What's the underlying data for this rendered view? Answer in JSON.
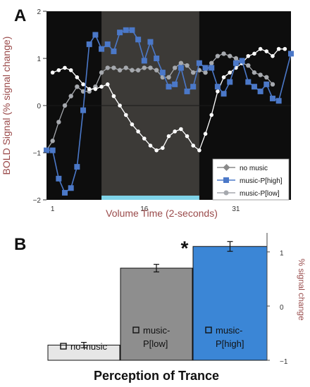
{
  "figure": {
    "panel_a_letter": "A",
    "panel_b_letter": "B",
    "significance_marker": "*"
  },
  "chart_data": [
    {
      "panel": "A",
      "type": "line",
      "title": "",
      "xlabel": "Volume Time (2-seconds)",
      "ylabel": "BOLD Signal (% signal change)",
      "xlim": [
        0,
        40
      ],
      "ylim": [
        -2,
        2
      ],
      "xticks": [
        1,
        16,
        31
      ],
      "yticks": [
        -2,
        -1,
        0,
        1,
        2
      ],
      "highlight_region": [
        9,
        25
      ],
      "legend_position": "lower-right",
      "colors": {
        "background": "#0d0d0d",
        "highlight": "#3c3a37",
        "music_high": "#4b78c8",
        "music_low": "#a6a9ae",
        "no_music": "#ffffff",
        "marker_bar": "#7fd3e8",
        "ylabel": "#9a4a4a"
      },
      "series": [
        {
          "name": "no music",
          "color": "#ffffff",
          "legend_color": "#8a8a8a",
          "marker": "diamond",
          "x": [
            1,
            2,
            3,
            4,
            5,
            6,
            7,
            8,
            9,
            10,
            11,
            12,
            13,
            14,
            15,
            16,
            17,
            18,
            19,
            20,
            21,
            22,
            23,
            24,
            25,
            26,
            27,
            28,
            29,
            30,
            31,
            32,
            33,
            34,
            35,
            36,
            37,
            38,
            39
          ],
          "values": [
            0.7,
            0.75,
            0.8,
            0.75,
            0.6,
            0.45,
            0.35,
            0.35,
            0.4,
            0.45,
            0.2,
            0.0,
            -0.2,
            -0.4,
            -0.55,
            -0.7,
            -0.85,
            -0.95,
            -0.9,
            -0.65,
            -0.55,
            -0.5,
            -0.65,
            -0.85,
            -0.95,
            -0.6,
            -0.2,
            0.3,
            0.6,
            0.7,
            0.8,
            0.9,
            1.05,
            1.1,
            1.2,
            1.15,
            1.05,
            1.2,
            1.2
          ]
        },
        {
          "name": "music-P[high]",
          "color": "#4b78c8",
          "marker": "square",
          "x": [
            0,
            1,
            2,
            3,
            4,
            5,
            6,
            7,
            8,
            9,
            10,
            11,
            12,
            13,
            14,
            15,
            16,
            17,
            18,
            19,
            20,
            21,
            22,
            23,
            24,
            25,
            26,
            27,
            28,
            29,
            30,
            31,
            32,
            33,
            34,
            35,
            36,
            37,
            38,
            40
          ],
          "values": [
            -0.95,
            -0.95,
            -1.55,
            -1.85,
            -1.75,
            -1.3,
            -0.1,
            1.3,
            1.5,
            1.2,
            1.3,
            1.15,
            1.55,
            1.6,
            1.6,
            1.4,
            0.95,
            1.35,
            1.0,
            0.7,
            0.4,
            0.45,
            0.8,
            0.3,
            0.4,
            0.9,
            0.8,
            0.8,
            0.4,
            0.25,
            0.5,
            0.9,
            0.95,
            0.5,
            0.4,
            0.3,
            0.45,
            0.15,
            0.1,
            1.1
          ]
        },
        {
          "name": "music-P[low]",
          "color": "#a6a9ae",
          "marker": "circle",
          "x": [
            0,
            1,
            2,
            3,
            4,
            5,
            6,
            7,
            8,
            9,
            10,
            11,
            12,
            13,
            14,
            15,
            16,
            17,
            18,
            19,
            20,
            21,
            22,
            23,
            24,
            25,
            26,
            27,
            28,
            29,
            30,
            31,
            32,
            33,
            34,
            35,
            36,
            37
          ],
          "values": [
            -0.95,
            -0.75,
            -0.35,
            0.0,
            0.2,
            0.4,
            0.3,
            0.3,
            0.4,
            0.7,
            0.8,
            0.8,
            0.75,
            0.8,
            0.75,
            0.75,
            0.8,
            0.8,
            0.75,
            0.6,
            0.6,
            0.8,
            0.9,
            0.85,
            0.7,
            0.75,
            0.7,
            0.9,
            1.05,
            1.1,
            1.05,
            1.0,
            0.9,
            0.85,
            0.7,
            0.65,
            0.6,
            0.45
          ]
        }
      ]
    },
    {
      "panel": "B",
      "type": "bar",
      "title": "",
      "xlabel": "Perception of Trance",
      "ylabel": "% signal change",
      "ylim": [
        -1,
        1.35
      ],
      "yticks": [
        -1,
        0,
        1
      ],
      "ytick_labels": [
        "−1",
        "0",
        "1"
      ],
      "axis_position": "right",
      "categories": [
        "no music",
        "music-P[low]",
        "music-P[high]"
      ],
      "category_labels": [
        [
          "no music"
        ],
        [
          "music-",
          "P[low]"
        ],
        [
          "music-",
          "P[high]"
        ]
      ],
      "values": [
        -0.72,
        0.7,
        1.1
      ],
      "errors": [
        0.05,
        0.07,
        0.09
      ],
      "colors": [
        "#e6e6e6",
        "#8e8e8e",
        "#3b86d6"
      ]
    }
  ]
}
